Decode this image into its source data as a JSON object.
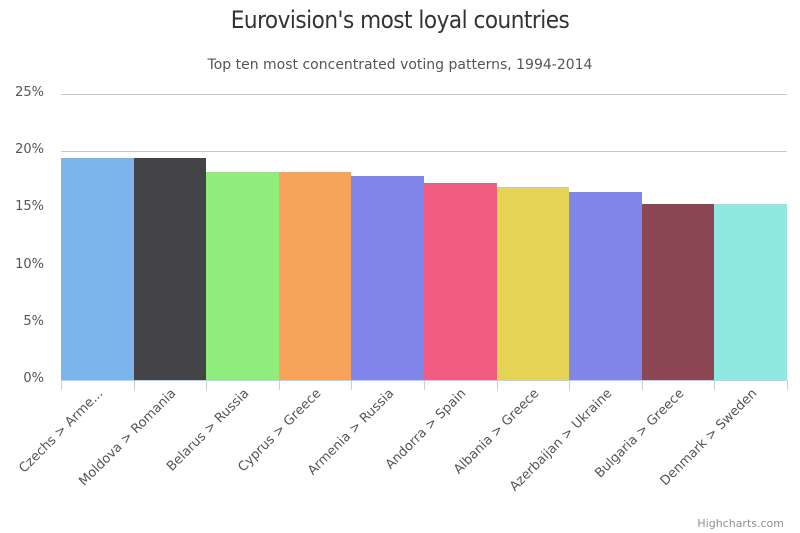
{
  "chart_data": {
    "type": "bar",
    "title": "Eurovision's most loyal countries",
    "subtitle": "Top ten most concentrated voting patterns, 1994-2014",
    "xlabel": "",
    "ylabel": "",
    "ylim": [
      0,
      25
    ],
    "yticks": [
      "0%",
      "5%",
      "10%",
      "15%",
      "20%",
      "25%"
    ],
    "grid": true,
    "legend": false,
    "categories": [
      "Czechs > Arme...",
      "Moldova > Romania",
      "Belarus > Russia",
      "Cyprus > Greece",
      "Armenia > Russia",
      "Andorra > Spain",
      "Albania > Greece",
      "Azerbaijan > Ukraine",
      "Bulgaria > Greece",
      "Denmark > Sweden"
    ],
    "values": [
      19.4,
      19.4,
      18.2,
      18.2,
      17.8,
      17.2,
      16.9,
      16.4,
      15.4,
      15.4
    ],
    "colors": [
      "#7cb5ec",
      "#434348",
      "#90ed7d",
      "#f7a35c",
      "#8085e9",
      "#f15c80",
      "#e4d354",
      "#8085e8",
      "#8d4653",
      "#91e8e1"
    ]
  },
  "credit": "Highcharts.com"
}
